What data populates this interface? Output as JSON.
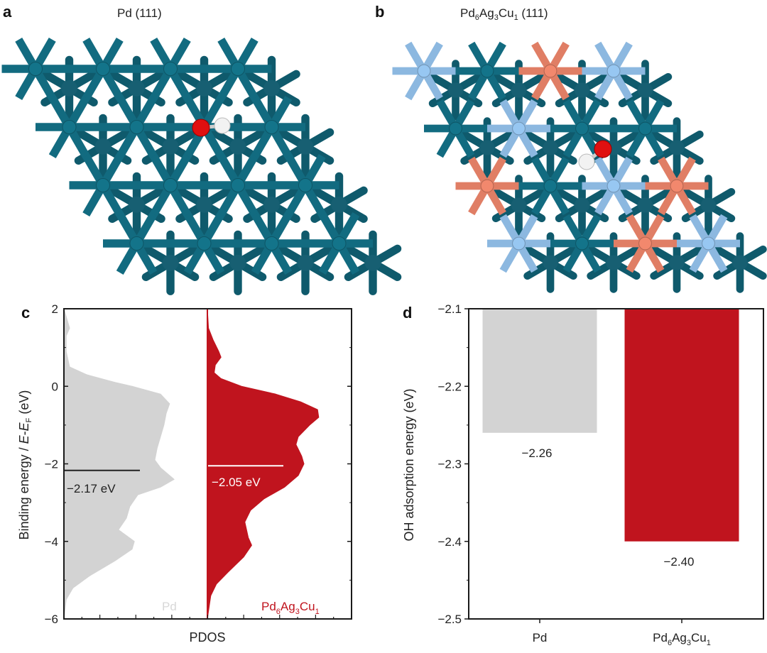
{
  "panels": {
    "a": {
      "label": "a",
      "title": "Pd (111)"
    },
    "b": {
      "label": "b",
      "title_parts": [
        "Pd",
        "6",
        "Ag",
        "3",
        "Cu",
        "1",
        " (111)"
      ]
    },
    "c": {
      "label": "c"
    },
    "d": {
      "label": "d"
    }
  },
  "structures": {
    "colors": {
      "Pd": "#126b80",
      "Ag": "#8cb8e0",
      "Cu": "#e07e65",
      "O": "#e01010",
      "H": "#f2f2f2"
    },
    "a_rows": [
      [
        "Pd",
        "Pd",
        "Pd",
        "Pd"
      ],
      [
        "Pd",
        "Pd",
        "Pd",
        "Pd"
      ],
      [
        "Pd",
        "Pd",
        "Pd",
        "Pd"
      ],
      [
        "Pd",
        "Pd",
        "Pd",
        "Pd"
      ]
    ],
    "b_rows": [
      [
        "Ag",
        "Pd",
        "Cu",
        "Ag"
      ],
      [
        "Pd",
        "Ag",
        "Pd",
        "Pd"
      ],
      [
        "Cu",
        "Pd",
        "Ag",
        "Cu"
      ],
      [
        "Ag",
        "Pd",
        "Cu",
        "Ag"
      ]
    ],
    "adsorbate": "OH"
  },
  "chart_data": [
    {
      "type": "area",
      "panel": "c",
      "ylabel_parts": [
        "Binding energy / ",
        "E",
        "-",
        "E",
        "F",
        " (eV)"
      ],
      "xlabel": "PDOS",
      "ylim": [
        -6,
        2
      ],
      "yticks": [
        "2",
        "0",
        "−2",
        "−4",
        "−6"
      ],
      "ytick_values": [
        2,
        0,
        -2,
        -4,
        -6
      ],
      "series": [
        {
          "name": "Pd",
          "color": "#d3d3d3",
          "d_band_center": -2.17,
          "d_band_label": "−2.17 eV",
          "points": [
            [
              2,
              0
            ],
            [
              1.7,
              0.03
            ],
            [
              1.5,
              0.05
            ],
            [
              1.3,
              0.02
            ],
            [
              0.9,
              0.02
            ],
            [
              0.5,
              0.05
            ],
            [
              0.3,
              0.2
            ],
            [
              0.1,
              0.45
            ],
            [
              0,
              0.6
            ],
            [
              -0.2,
              0.85
            ],
            [
              -0.45,
              0.93
            ],
            [
              -0.7,
              0.9
            ],
            [
              -1.0,
              0.88
            ],
            [
              -1.3,
              0.85
            ],
            [
              -1.6,
              0.82
            ],
            [
              -1.9,
              0.8
            ],
            [
              -2.1,
              0.85
            ],
            [
              -2.4,
              0.97
            ],
            [
              -2.6,
              0.85
            ],
            [
              -2.8,
              0.65
            ],
            [
              -3.1,
              0.58
            ],
            [
              -3.4,
              0.55
            ],
            [
              -3.7,
              0.48
            ],
            [
              -4.0,
              0.62
            ],
            [
              -4.2,
              0.6
            ],
            [
              -4.5,
              0.45
            ],
            [
              -4.9,
              0.22
            ],
            [
              -5.2,
              0.08
            ],
            [
              -5.5,
              0.02
            ],
            [
              -6,
              0
            ]
          ]
        },
        {
          "name_parts": [
            "Pd",
            "6",
            "Ag",
            "3",
            "Cu",
            "1"
          ],
          "color": "#c0141e",
          "d_band_center": -2.05,
          "d_band_label": "−2.05 eV",
          "points": [
            [
              2,
              0
            ],
            [
              1.5,
              0.01
            ],
            [
              1.2,
              0.05
            ],
            [
              0.9,
              0.1
            ],
            [
              0.75,
              0.12
            ],
            [
              0.55,
              0.07
            ],
            [
              0.35,
              0.06
            ],
            [
              0.2,
              0.12
            ],
            [
              0,
              0.3
            ],
            [
              -0.2,
              0.6
            ],
            [
              -0.4,
              0.82
            ],
            [
              -0.6,
              0.97
            ],
            [
              -0.8,
              0.98
            ],
            [
              -1.0,
              0.9
            ],
            [
              -1.3,
              0.8
            ],
            [
              -1.5,
              0.78
            ],
            [
              -1.8,
              0.83
            ],
            [
              -2.0,
              0.85
            ],
            [
              -2.3,
              0.8
            ],
            [
              -2.6,
              0.68
            ],
            [
              -2.9,
              0.5
            ],
            [
              -3.2,
              0.38
            ],
            [
              -3.5,
              0.33
            ],
            [
              -3.9,
              0.36
            ],
            [
              -4.1,
              0.39
            ],
            [
              -4.4,
              0.32
            ],
            [
              -4.8,
              0.18
            ],
            [
              -5.1,
              0.08
            ],
            [
              -5.4,
              0.03
            ],
            [
              -6,
              0
            ]
          ]
        }
      ]
    },
    {
      "type": "bar",
      "panel": "d",
      "ylabel": "OH adsorption energy (eV)",
      "ylim": [
        -2.5,
        -2.1
      ],
      "yticks": [
        "−2.1",
        "−2.2",
        "−2.3",
        "−2.4",
        "−2.5"
      ],
      "ytick_values": [
        -2.1,
        -2.2,
        -2.3,
        -2.4,
        -2.5
      ],
      "categories": [
        "Pd",
        "Pd6Ag3Cu1"
      ],
      "category_label_parts": [
        [
          "Pd"
        ],
        [
          "Pd",
          "6",
          "Ag",
          "3",
          "Cu",
          "1"
        ]
      ],
      "values": [
        -2.26,
        -2.4
      ],
      "value_labels": [
        "−2.26",
        "−2.40"
      ],
      "colors": [
        "#d3d3d3",
        "#c0141e"
      ]
    }
  ]
}
